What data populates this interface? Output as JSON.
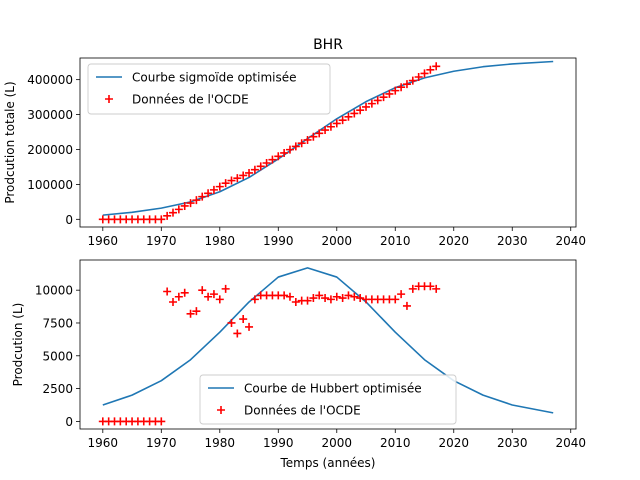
{
  "figure": {
    "title": "BHR"
  },
  "chart_data": [
    {
      "type": "line",
      "title": "BHR",
      "xlabel": "",
      "ylabel": "Prodcution totale (L)",
      "xlim": [
        1956.1,
        2040.9
      ],
      "ylim": [
        -22000,
        462000
      ],
      "xticks": [
        1960,
        1970,
        1980,
        1990,
        2000,
        2010,
        2020,
        2030,
        2040
      ],
      "yticks": [
        0,
        100000,
        200000,
        300000,
        400000
      ],
      "ytick_labels": [
        "0",
        "100000",
        "200000",
        "300000",
        "400000"
      ],
      "legend": {
        "position": "top-left",
        "entries": [
          "Courbe sigmoïde optimisée",
          "Données de l'OCDE"
        ]
      },
      "series": [
        {
          "name": "Courbe sigmoïde optimisée",
          "kind": "line",
          "color": "#1f77b4",
          "x": [
            1960,
            1965,
            1970,
            1975,
            1980,
            1985,
            1990,
            1995,
            2000,
            2005,
            2010,
            2015,
            2020,
            2025,
            2030,
            2037
          ],
          "y": [
            12000,
            20000,
            32000,
            50000,
            79000,
            120000,
            173000,
            231000,
            288000,
            337000,
            377000,
            405000,
            424000,
            437000,
            445000,
            452000
          ]
        },
        {
          "name": "Données de l'OCDE",
          "kind": "scatter",
          "marker": "+",
          "color": "#ff0000",
          "x": [
            1960,
            1961,
            1962,
            1963,
            1964,
            1965,
            1966,
            1967,
            1968,
            1969,
            1970,
            1971,
            1972,
            1973,
            1974,
            1975,
            1976,
            1977,
            1978,
            1979,
            1980,
            1981,
            1982,
            1983,
            1984,
            1985,
            1986,
            1987,
            1988,
            1989,
            1990,
            1991,
            1992,
            1993,
            1994,
            1995,
            1996,
            1997,
            1998,
            1999,
            2000,
            2001,
            2002,
            2003,
            2004,
            2005,
            2006,
            2007,
            2008,
            2009,
            2010,
            2011,
            2012,
            2013,
            2014,
            2015,
            2016,
            2017
          ],
          "y": [
            0,
            0,
            0,
            0,
            0,
            0,
            0,
            0,
            0,
            0,
            0,
            9900,
            19000,
            28500,
            38300,
            46500,
            55000,
            65000,
            74500,
            84300,
            93600,
            103600,
            111100,
            117800,
            125600,
            132800,
            142100,
            151700,
            161300,
            170900,
            180500,
            190100,
            199600,
            208800,
            218000,
            227200,
            236600,
            246200,
            255700,
            265100,
            274600,
            284000,
            293600,
            303100,
            312500,
            321900,
            331300,
            340600,
            349900,
            359200,
            368600,
            378300,
            387100,
            397300,
            407600,
            417900,
            428200,
            438200
          ]
        }
      ]
    },
    {
      "type": "line",
      "title": "",
      "xlabel": "Temps (années)",
      "ylabel": "Prodcution (L)",
      "xlim": [
        1956.1,
        2040.9
      ],
      "ylim": [
        -580,
        12300
      ],
      "xticks": [
        1960,
        1970,
        1980,
        1990,
        2000,
        2010,
        2020,
        2030,
        2040
      ],
      "yticks": [
        0,
        2500,
        5000,
        7500,
        10000
      ],
      "ytick_labels": [
        "0",
        "2500",
        "5000",
        "7500",
        "10000"
      ],
      "legend": {
        "position": "lower-center",
        "entries": [
          "Courbe de Hubbert optimisée",
          "Données de l'OCDE"
        ]
      },
      "series": [
        {
          "name": "Courbe de Hubbert optimisée",
          "kind": "line",
          "color": "#1f77b4",
          "x": [
            1960,
            1965,
            1970,
            1975,
            1980,
            1985,
            1990,
            1995,
            2000,
            2005,
            2010,
            2015,
            2020,
            2025,
            2030,
            2037
          ],
          "y": [
            1250,
            2000,
            3100,
            4700,
            6800,
            9100,
            11000,
            11700,
            11000,
            9100,
            6800,
            4700,
            3100,
            2000,
            1250,
            650
          ]
        },
        {
          "name": "Données de l'OCDE",
          "kind": "scatter",
          "marker": "+",
          "color": "#ff0000",
          "x": [
            1960,
            1961,
            1962,
            1963,
            1964,
            1965,
            1966,
            1967,
            1968,
            1969,
            1970,
            1971,
            1972,
            1973,
            1974,
            1975,
            1976,
            1977,
            1978,
            1979,
            1980,
            1981,
            1982,
            1983,
            1984,
            1985,
            1986,
            1987,
            1988,
            1989,
            1990,
            1991,
            1992,
            1993,
            1994,
            1995,
            1996,
            1997,
            1998,
            1999,
            2000,
            2001,
            2002,
            2003,
            2004,
            2005,
            2006,
            2007,
            2008,
            2009,
            2010,
            2011,
            2012,
            2013,
            2014,
            2015,
            2016,
            2017
          ],
          "y": [
            0,
            0,
            0,
            0,
            0,
            0,
            0,
            0,
            0,
            0,
            0,
            9900,
            9100,
            9500,
            9800,
            8200,
            8400,
            10000,
            9500,
            9700,
            9300,
            10100,
            7500,
            6700,
            7800,
            7200,
            9300,
            9600,
            9600,
            9600,
            9600,
            9600,
            9500,
            9100,
            9200,
            9200,
            9400,
            9600,
            9400,
            9300,
            9500,
            9400,
            9600,
            9500,
            9400,
            9300,
            9300,
            9300,
            9300,
            9300,
            9300,
            9700,
            8800,
            10100,
            10300,
            10300,
            10300,
            10100
          ]
        }
      ]
    }
  ]
}
